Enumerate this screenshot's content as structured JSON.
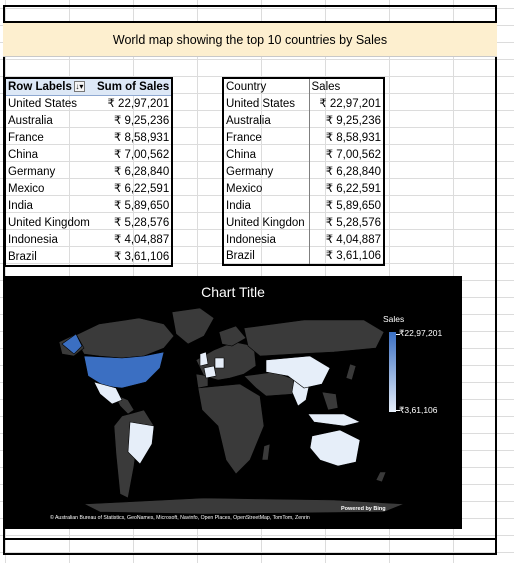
{
  "title": "World map showing the top 10 countries by Sales",
  "pivot": {
    "header": [
      "Row Labels",
      "Sum of Sales"
    ],
    "rows": [
      [
        "United States",
        "₹ 22,97,201"
      ],
      [
        "Australia",
        "₹ 9,25,236"
      ],
      [
        "France",
        "₹ 8,58,931"
      ],
      [
        "China",
        "₹ 7,00,562"
      ],
      [
        "Germany",
        "₹ 6,28,840"
      ],
      [
        "Mexico",
        "₹ 6,22,591"
      ],
      [
        "India",
        "₹ 5,89,650"
      ],
      [
        "United Kingdom",
        "₹ 5,28,576"
      ],
      [
        "Indonesia",
        "₹ 4,04,887"
      ],
      [
        "Brazil",
        "₹ 3,61,106"
      ]
    ]
  },
  "copy": {
    "header": [
      "Country",
      "Sales"
    ],
    "rows": [
      [
        "United States",
        "₹ 22,97,201"
      ],
      [
        "Australia",
        "₹ 9,25,236"
      ],
      [
        "France",
        "₹ 8,58,931"
      ],
      [
        "China",
        "₹ 7,00,562"
      ],
      [
        "Germany",
        "₹ 6,28,840"
      ],
      [
        "Mexico",
        "₹ 6,22,591"
      ],
      [
        "India",
        "₹ 5,89,650"
      ],
      [
        "United Kingdon",
        "₹ 5,28,576"
      ],
      [
        "Indonesia",
        "₹ 4,04,887"
      ],
      [
        "Brazil",
        "₹ 3,61,106"
      ]
    ]
  },
  "chart": {
    "title": "Chart Title",
    "legend_title": "Sales",
    "legend_max": "₹22,97,201",
    "legend_min": "₹3,61,106",
    "powered_by": "Powered by Bing",
    "attribution": "© Australian Bureau of Statistics, GeoNames, Microsoft, Navinfo, Open Places, OpenStreetMap, TomTom, Zenrin",
    "colors": {
      "background": "#000000",
      "land": "#3a3a3a",
      "max": "#3b6fc2",
      "min": "#e6eef9"
    }
  }
}
